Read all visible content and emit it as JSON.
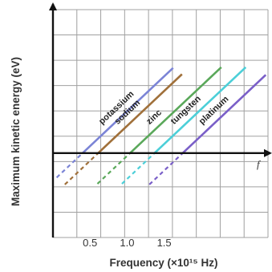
{
  "chart_data": {
    "type": "line",
    "title": "",
    "xlabel": "Frequency  (×10¹⁵ Hz)",
    "ylabel": "Maximum kinetic energy (eV)",
    "x_axis_symbol": "f",
    "xlim": [
      0,
      2.9
    ],
    "ylim": [
      -5,
      8.5
    ],
    "x_ticks": [
      "0.5",
      "1.0",
      "1.5"
    ],
    "x_tick_values": [
      0.5,
      1.0,
      1.5
    ],
    "grid": true,
    "legend": "none",
    "slope": 4.136,
    "series": [
      {
        "name": "potassium",
        "threshold": 0.4,
        "color": "#7b84d6",
        "dashed_from": 0.05,
        "solid_to": 1.62
      },
      {
        "name": "sodium",
        "threshold": 0.61,
        "color": "#a0703a",
        "dashed_from": 0.16,
        "solid_to": 1.74
      },
      {
        "name": "zinc",
        "threshold": 1.04,
        "color": "#5aa85a",
        "dashed_from": 0.6,
        "solid_to": 2.27
      },
      {
        "name": "tungsten",
        "threshold": 1.37,
        "color": "#4ccfd8",
        "dashed_from": 0.93,
        "solid_to": 2.6
      },
      {
        "name": "platinum",
        "threshold": 1.75,
        "color": "#7a5fc8",
        "dashed_from": 1.3,
        "solid_to": 2.87
      }
    ]
  }
}
